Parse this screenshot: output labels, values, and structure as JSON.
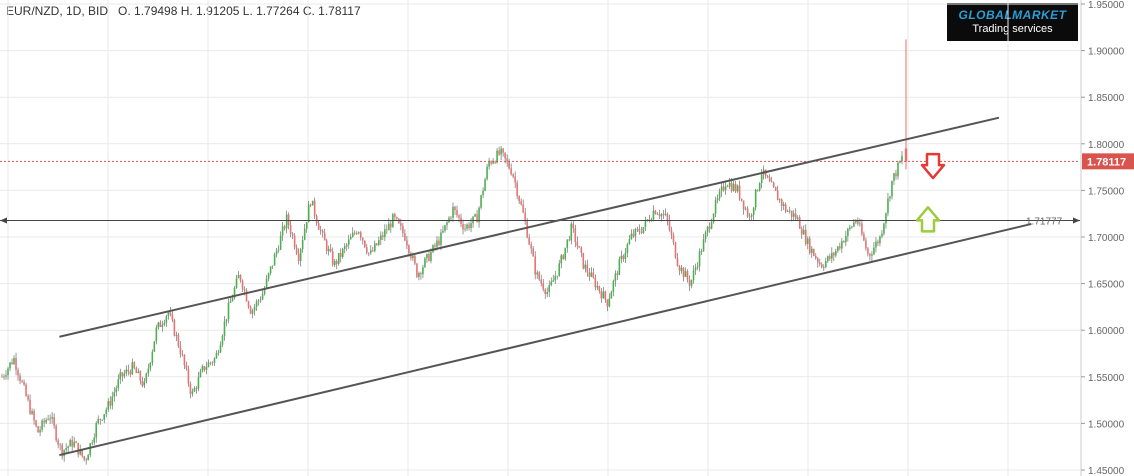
{
  "header": {
    "symbol": "EUR/NZD",
    "timeframe": "1D",
    "side": "BID",
    "summary": "EUR/NZD, 1D, BID   O. 1.79498 H. 1.91205 L. 1.77264 C. 1.78117"
  },
  "logo": {
    "brand": "GLOBALMARKET",
    "tagline": "Trading services"
  },
  "chart_data": {
    "type": "candlestick",
    "symbol": "EUR/NZD",
    "timeframe": "1D",
    "ohlc_last": {
      "open": 1.79498,
      "high": 1.91205,
      "low": 1.77264,
      "close": 1.78117
    },
    "y_ticks": [
      "1.95000",
      "1.90000",
      "1.85000",
      "1.80000",
      "1.75000",
      "1.70000",
      "1.65000",
      "1.60000",
      "1.55000",
      "1.50000",
      "1.45000"
    ],
    "y_tick_values": [
      1.95,
      1.9,
      1.85,
      1.8,
      1.75,
      1.7,
      1.65,
      1.6,
      1.55,
      1.5,
      1.45
    ],
    "ylim": [
      1.45,
      1.95
    ],
    "grid": true,
    "price_path_waypoints": [
      1.55,
      1.57,
      1.53,
      1.49,
      1.51,
      1.47,
      1.48,
      1.46,
      1.5,
      1.52,
      1.55,
      1.56,
      1.54,
      1.6,
      1.62,
      1.58,
      1.53,
      1.56,
      1.57,
      1.62,
      1.66,
      1.62,
      1.64,
      1.68,
      1.72,
      1.68,
      1.74,
      1.7,
      1.67,
      1.69,
      1.71,
      1.68,
      1.7,
      1.72,
      1.7,
      1.66,
      1.68,
      1.7,
      1.73,
      1.71,
      1.72,
      1.78,
      1.79,
      1.77,
      1.72,
      1.66,
      1.64,
      1.67,
      1.71,
      1.67,
      1.65,
      1.63,
      1.67,
      1.7,
      1.71,
      1.73,
      1.72,
      1.67,
      1.65,
      1.69,
      1.73,
      1.76,
      1.75,
      1.72,
      1.77,
      1.75,
      1.73,
      1.72,
      1.69,
      1.67,
      1.68,
      1.7,
      1.72,
      1.68,
      1.7,
      1.76,
      1.79
    ],
    "last_price": {
      "value": 1.78117,
      "label": "1.78117",
      "color": "#d9534f"
    },
    "horizontal_level": {
      "value": 1.71777,
      "label": "1.71777"
    },
    "channel_upper": {
      "start": [
        0.055,
        1.593
      ],
      "end": [
        0.925,
        1.828
      ]
    },
    "channel_lower": {
      "start": [
        0.055,
        1.466
      ],
      "end": [
        0.955,
        1.714
      ]
    },
    "annotations": [
      {
        "type": "arrow-down",
        "price": 1.775,
        "color": "#e53935"
      },
      {
        "type": "arrow-up",
        "price": 1.72,
        "color": "#9ccc3c"
      }
    ],
    "colors": {
      "up": "#4caf50",
      "down": "#e57373",
      "wick": "#555555",
      "channel": "#555555",
      "grid": "#e9e9e9"
    }
  }
}
